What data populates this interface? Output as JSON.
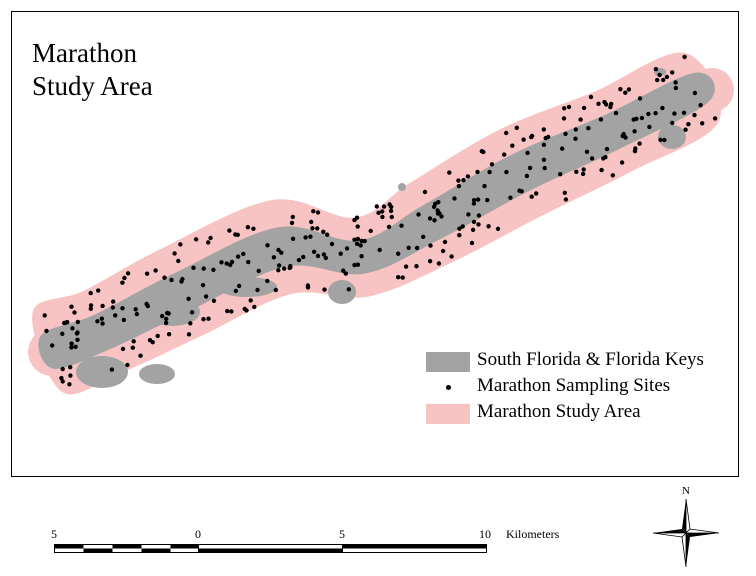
{
  "title": {
    "line1": "Marathon",
    "line2": "Study Area"
  },
  "colors": {
    "land": "#a3a3a3",
    "study_area": "#f7c3c3",
    "site": "#000000"
  },
  "legend": [
    {
      "label": "South Florida & Florida Keys",
      "symbol": "gray-fill"
    },
    {
      "label": "Marathon Sampling Sites",
      "symbol": "black-dot"
    },
    {
      "label": "Marathon Study Area",
      "symbol": "pink-fill"
    }
  ],
  "scale_bar": {
    "labels": [
      "5",
      "0",
      "5",
      "10"
    ],
    "unit": "Kilometers"
  },
  "north_arrow": {
    "label": "N"
  }
}
